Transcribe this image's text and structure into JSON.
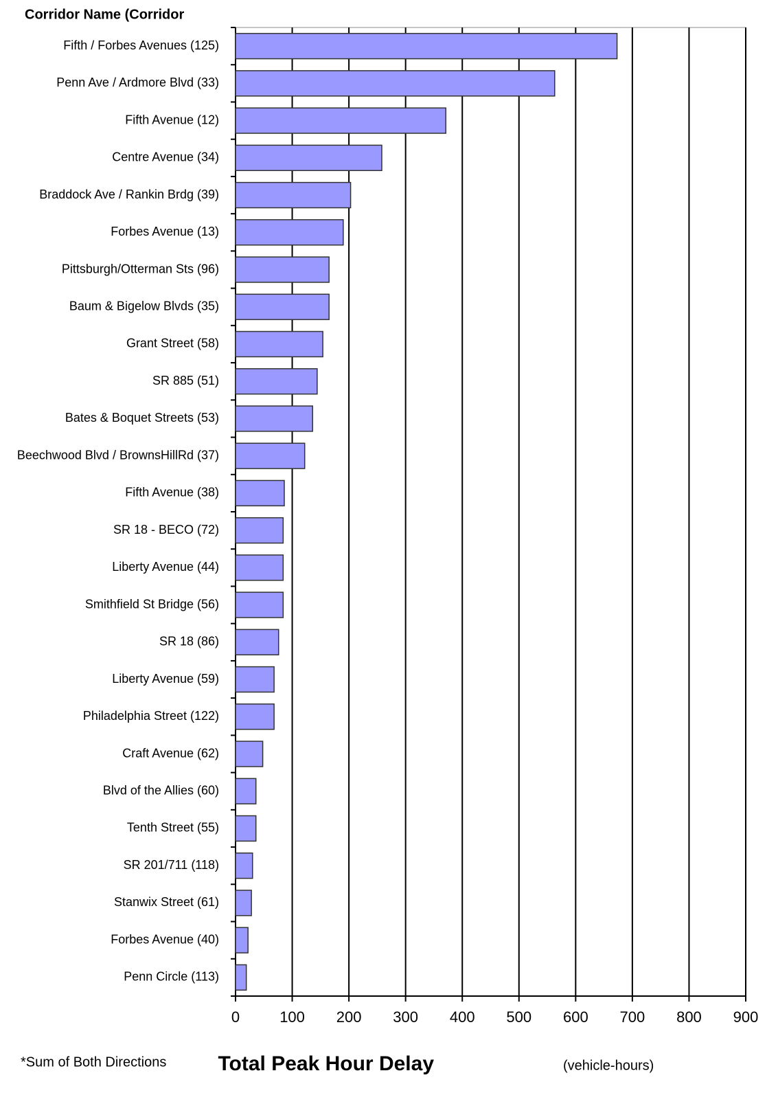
{
  "chart_data": {
    "type": "bar",
    "orientation": "horizontal",
    "title": "Corridor Name (Corridor",
    "x_label": "Total Peak Hour Delay",
    "x_label_unit": "(vehicle-hours)",
    "note": "*Sum of Both Directions",
    "categories": [
      "Fifth / Forbes Avenues (125)",
      "Penn Ave / Ardmore Blvd (33)",
      "Fifth Avenue (12)",
      "Centre Avenue (34)",
      "Braddock Ave / Rankin Brdg (39)",
      "Forbes Avenue (13)",
      "Pittsburgh/Otterman Sts (96)",
      "Baum & Bigelow Blvds (35)",
      "Grant Street (58)",
      "SR 885 (51)",
      "Bates & Boquet Streets (53)",
      "Beechwood Blvd / BrownsHillRd (37)",
      "Fifth Avenue (38)",
      "SR 18 - BECO (72)",
      "Liberty Avenue (44)",
      "Smithfield St Bridge (56)",
      "SR 18 (86)",
      "Liberty Avenue (59)",
      "Philadelphia Street (122)",
      "Craft Avenue (62)",
      "Blvd of the Allies (60)",
      "Tenth Street (55)",
      "SR 201/711 (118)",
      "Stanwix Street (61)",
      "Forbes Avenue (40)",
      "Penn Circle (113)"
    ],
    "values": [
      673,
      563,
      371,
      258,
      203,
      190,
      165,
      165,
      154,
      144,
      136,
      122,
      86,
      84,
      84,
      84,
      76,
      68,
      68,
      48,
      36,
      36,
      30,
      28,
      22,
      19
    ],
    "color": "#9999ff",
    "xlim": [
      0,
      900
    ],
    "xticks": [
      0,
      100,
      200,
      300,
      400,
      500,
      600,
      700,
      800,
      900
    ],
    "grid": true
  }
}
